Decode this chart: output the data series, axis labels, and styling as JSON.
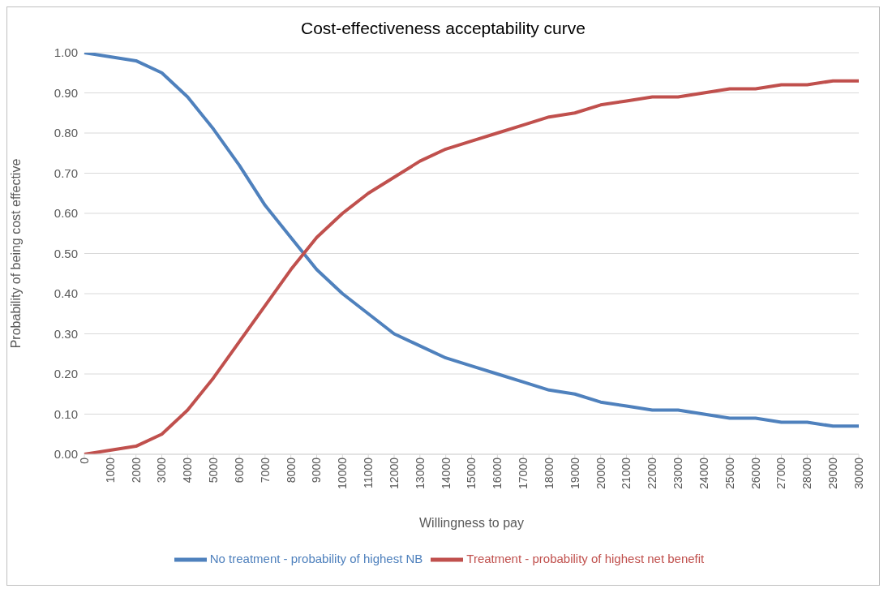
{
  "chart_data": {
    "type": "line",
    "title": "Cost-effectiveness  acceptability curve",
    "xlabel": "Willingness to pay",
    "ylabel": "Probability of being cost effective",
    "categories": [
      "0",
      "1000",
      "2000",
      "3000",
      "4000",
      "5000",
      "6000",
      "7000",
      "8000",
      "9000",
      "10000",
      "11000",
      "12000",
      "13000",
      "14000",
      "15000",
      "16000",
      "17000",
      "18000",
      "19000",
      "20000",
      "21000",
      "22000",
      "23000",
      "24000",
      "25000",
      "26000",
      "27000",
      "28000",
      "29000",
      "30000"
    ],
    "series": [
      {
        "name": "No treatment - probability of highest NB",
        "color": "#4f81bd",
        "values": [
          1.0,
          0.99,
          0.98,
          0.95,
          0.89,
          0.81,
          0.72,
          0.62,
          0.54,
          0.46,
          0.4,
          0.35,
          0.3,
          0.27,
          0.24,
          0.22,
          0.2,
          0.18,
          0.16,
          0.15,
          0.13,
          0.12,
          0.11,
          0.11,
          0.1,
          0.09,
          0.09,
          0.08,
          0.08,
          0.07,
          0.07
        ]
      },
      {
        "name": "Treatment - probability of highest net benefit",
        "color": "#c0504d",
        "values": [
          0.0,
          0.01,
          0.02,
          0.05,
          0.11,
          0.19,
          0.28,
          0.37,
          0.46,
          0.54,
          0.6,
          0.65,
          0.69,
          0.73,
          0.76,
          0.78,
          0.8,
          0.82,
          0.84,
          0.85,
          0.87,
          0.88,
          0.89,
          0.89,
          0.9,
          0.91,
          0.91,
          0.92,
          0.92,
          0.93,
          0.93
        ]
      }
    ],
    "ylim": [
      0,
      1
    ],
    "yticks": [
      {
        "value": 0,
        "label": "0.00"
      },
      {
        "value": 0.1,
        "label": "0.10"
      },
      {
        "value": 0.2,
        "label": "0.20"
      },
      {
        "value": 0.3,
        "label": "0.30"
      },
      {
        "value": 0.4,
        "label": "0.40"
      },
      {
        "value": 0.5,
        "label": "0.50"
      },
      {
        "value": 0.6,
        "label": "0.60"
      },
      {
        "value": 0.7,
        "label": "0.70"
      },
      {
        "value": 0.8,
        "label": "0.80"
      },
      {
        "value": 0.9,
        "label": "0.90"
      },
      {
        "value": 1,
        "label": "1.00"
      }
    ],
    "grid": "y",
    "legend": "bottom",
    "marker": "none",
    "line_style": "solid"
  }
}
